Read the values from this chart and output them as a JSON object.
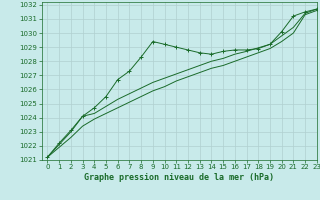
{
  "title": "Graphe pression niveau de la mer (hPa)",
  "bg_color": "#c8eaea",
  "grid_color": "#b0d0d0",
  "line_color": "#1a6b2a",
  "xlim": [
    -0.5,
    23
  ],
  "ylim": [
    1021,
    1032.2
  ],
  "xticks": [
    0,
    1,
    2,
    3,
    4,
    5,
    6,
    7,
    8,
    9,
    10,
    11,
    12,
    13,
    14,
    15,
    16,
    17,
    18,
    19,
    20,
    21,
    22,
    23
  ],
  "yticks": [
    1021,
    1022,
    1023,
    1024,
    1025,
    1026,
    1027,
    1028,
    1029,
    1030,
    1031,
    1032
  ],
  "series1_x": [
    0,
    1,
    2,
    3,
    4,
    5,
    6,
    7,
    8,
    9,
    10,
    11,
    12,
    13,
    14,
    15,
    16,
    17,
    18,
    19,
    20,
    21,
    22,
    23
  ],
  "series1_y": [
    1021.2,
    1022.2,
    1023.1,
    1024.1,
    1024.7,
    1025.5,
    1026.7,
    1027.3,
    1028.3,
    1029.4,
    1029.2,
    1029.0,
    1028.8,
    1028.6,
    1028.5,
    1028.7,
    1028.8,
    1028.8,
    1028.9,
    1029.2,
    1030.1,
    1031.2,
    1031.5,
    1031.7
  ],
  "series2_x": [
    0,
    1,
    2,
    3,
    4,
    5,
    6,
    7,
    8,
    9,
    10,
    11,
    12,
    13,
    14,
    15,
    16,
    17,
    18,
    19,
    20,
    21,
    22,
    23
  ],
  "series2_y": [
    1021.2,
    1022.1,
    1023.0,
    1024.1,
    1024.3,
    1024.8,
    1025.3,
    1025.7,
    1026.1,
    1026.5,
    1026.8,
    1027.1,
    1027.4,
    1027.7,
    1028.0,
    1028.2,
    1028.5,
    1028.7,
    1028.95,
    1029.2,
    1029.8,
    1030.4,
    1031.4,
    1031.7
  ],
  "series3_x": [
    0,
    1,
    2,
    3,
    4,
    5,
    6,
    7,
    8,
    9,
    10,
    11,
    12,
    13,
    14,
    15,
    16,
    17,
    18,
    19,
    20,
    21,
    22,
    23
  ],
  "series3_y": [
    1021.2,
    1021.9,
    1022.6,
    1023.4,
    1023.9,
    1024.3,
    1024.7,
    1025.1,
    1025.5,
    1025.9,
    1026.2,
    1026.6,
    1026.9,
    1027.2,
    1027.5,
    1027.7,
    1028.0,
    1028.3,
    1028.6,
    1028.9,
    1029.4,
    1030.0,
    1031.3,
    1031.6
  ],
  "tick_fontsize": 5.0,
  "xlabel_fontsize": 6.0
}
